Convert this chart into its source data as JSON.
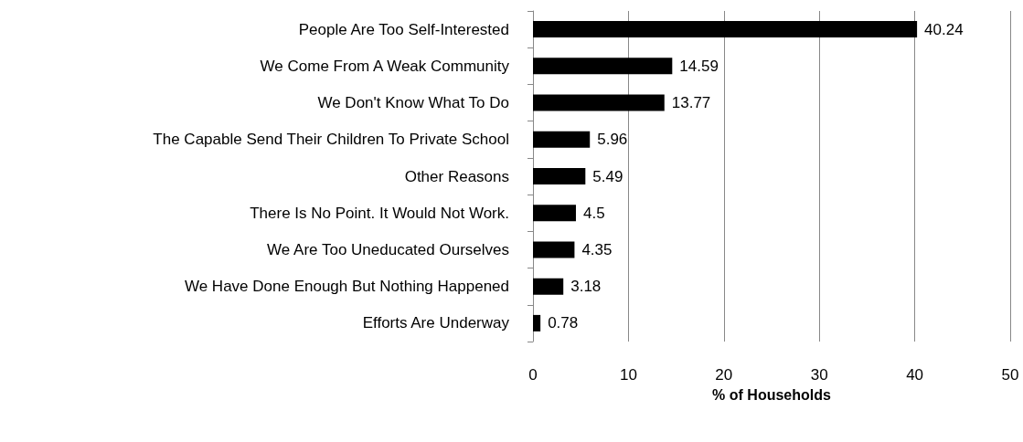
{
  "chart_data": {
    "type": "bar",
    "orientation": "horizontal",
    "categories": [
      "People Are Too Self-Interested",
      "We Come From A Weak Community",
      "We Don't Know What To Do",
      "The Capable Send Their Children To Private School",
      "Other Reasons",
      "There Is No Point. It Would Not Work.",
      "We Are Too Uneducated Ourselves",
      "We Have Done Enough But Nothing Happened",
      "Efforts Are Underway"
    ],
    "values": [
      40.24,
      14.59,
      13.77,
      5.96,
      5.49,
      4.5,
      4.35,
      3.18,
      0.78
    ],
    "color": "#000000",
    "xlabel": "% of Households",
    "xlim": [
      0,
      50
    ],
    "xticks": [
      0,
      10,
      20,
      30,
      40,
      50
    ],
    "grid": "x",
    "data_labels": true
  }
}
